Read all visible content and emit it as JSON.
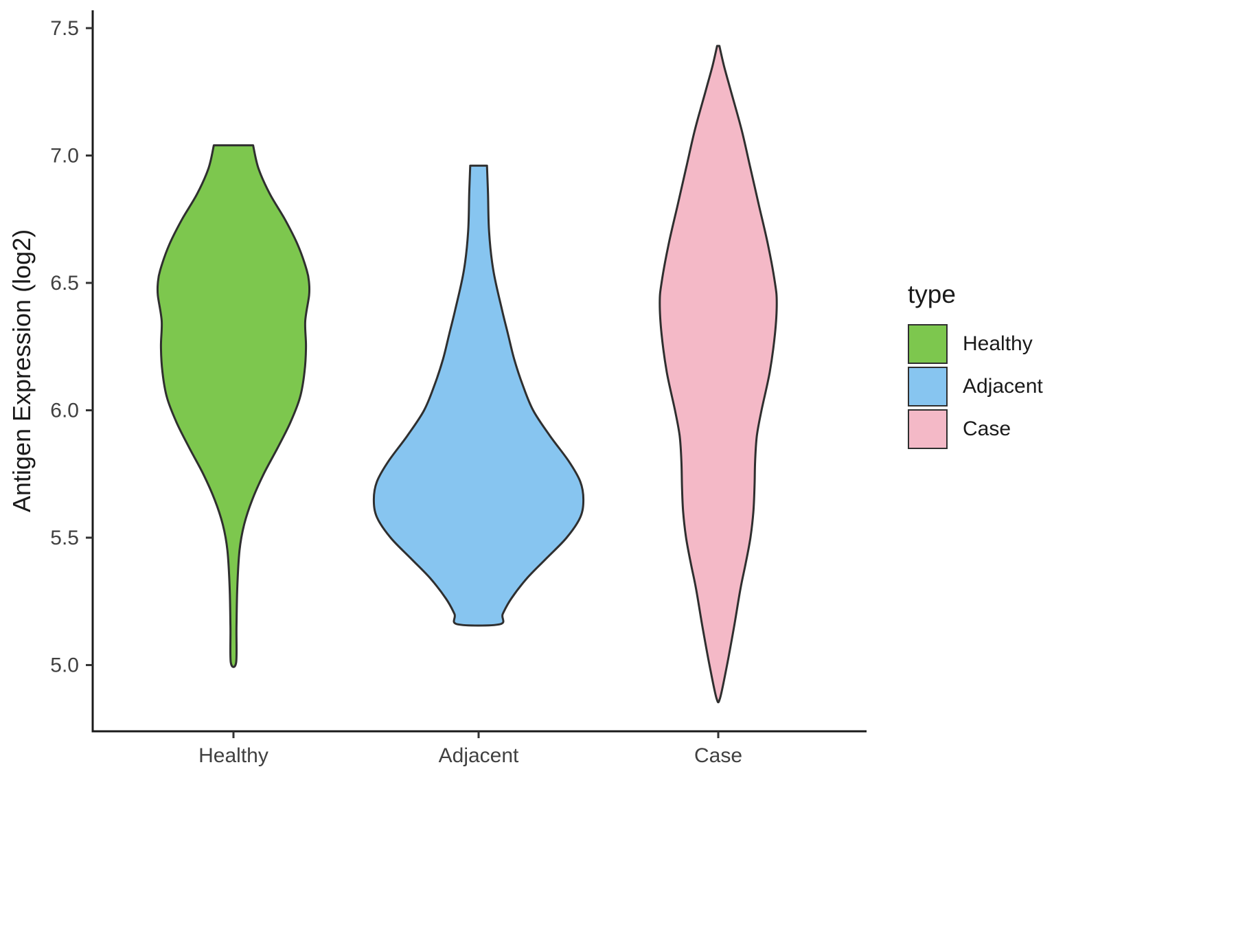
{
  "chart_data": {
    "type": "violin",
    "title": "",
    "xlabel": "",
    "ylabel": "Antigen Expression (log2)",
    "categories": [
      "Healthy",
      "Adjacent",
      "Case"
    ],
    "y_ticks": [
      "5.0",
      "5.5",
      "6.0",
      "6.5",
      "7.0",
      "7.5"
    ],
    "y_tick_values": [
      5.0,
      5.5,
      6.0,
      6.5,
      7.0,
      7.5
    ],
    "ylim": [
      4.74,
      7.57
    ],
    "grid": false,
    "legend_position": "right",
    "outline_color": "#2f2f2f",
    "axis_color": "#1a1a1a",
    "tick_label_color": "#404040",
    "series": [
      {
        "name": "Healthy",
        "color": "#7dc74e",
        "y_min": 5.01,
        "y_max": 7.04,
        "max_half_width": 0.31,
        "profile": [
          [
            7.04,
            0.26
          ],
          [
            6.95,
            0.33
          ],
          [
            6.85,
            0.48
          ],
          [
            6.75,
            0.68
          ],
          [
            6.65,
            0.85
          ],
          [
            6.55,
            0.97
          ],
          [
            6.5,
            1.0
          ],
          [
            6.45,
            1.0
          ],
          [
            6.35,
            0.95
          ],
          [
            6.25,
            0.96
          ],
          [
            6.15,
            0.94
          ],
          [
            6.05,
            0.88
          ],
          [
            5.95,
            0.75
          ],
          [
            5.85,
            0.58
          ],
          [
            5.75,
            0.4
          ],
          [
            5.65,
            0.25
          ],
          [
            5.55,
            0.14
          ],
          [
            5.45,
            0.08
          ],
          [
            5.3,
            0.05
          ],
          [
            5.15,
            0.04
          ],
          [
            5.01,
            0.035
          ]
        ]
      },
      {
        "name": "Adjacent",
        "color": "#87c5f0",
        "y_min": 5.16,
        "y_max": 6.96,
        "max_half_width": 0.43,
        "profile": [
          [
            6.96,
            0.08
          ],
          [
            6.85,
            0.09
          ],
          [
            6.7,
            0.1
          ],
          [
            6.55,
            0.14
          ],
          [
            6.4,
            0.22
          ],
          [
            6.3,
            0.28
          ],
          [
            6.2,
            0.34
          ],
          [
            6.1,
            0.42
          ],
          [
            6.0,
            0.52
          ],
          [
            5.9,
            0.68
          ],
          [
            5.8,
            0.86
          ],
          [
            5.72,
            0.97
          ],
          [
            5.65,
            1.0
          ],
          [
            5.58,
            0.97
          ],
          [
            5.5,
            0.84
          ],
          [
            5.42,
            0.65
          ],
          [
            5.34,
            0.46
          ],
          [
            5.26,
            0.31
          ],
          [
            5.2,
            0.23
          ],
          [
            5.16,
            0.2
          ]
        ]
      },
      {
        "name": "Case",
        "color": "#f4b9c7",
        "y_min": 4.87,
        "y_max": 7.43,
        "max_half_width": 0.24,
        "profile": [
          [
            7.43,
            0.02
          ],
          [
            7.35,
            0.1
          ],
          [
            7.25,
            0.22
          ],
          [
            7.1,
            0.4
          ],
          [
            6.95,
            0.55
          ],
          [
            6.8,
            0.7
          ],
          [
            6.65,
            0.85
          ],
          [
            6.5,
            0.97
          ],
          [
            6.42,
            1.0
          ],
          [
            6.3,
            0.97
          ],
          [
            6.15,
            0.88
          ],
          [
            6.0,
            0.74
          ],
          [
            5.9,
            0.66
          ],
          [
            5.8,
            0.63
          ],
          [
            5.7,
            0.62
          ],
          [
            5.6,
            0.6
          ],
          [
            5.5,
            0.55
          ],
          [
            5.4,
            0.47
          ],
          [
            5.3,
            0.38
          ],
          [
            5.15,
            0.27
          ],
          [
            5.0,
            0.15
          ],
          [
            4.87,
            0.03
          ]
        ]
      }
    ]
  },
  "legend": {
    "title": "type",
    "items": [
      {
        "label": "Healthy",
        "color": "#7dc74e"
      },
      {
        "label": "Adjacent",
        "color": "#87c5f0"
      },
      {
        "label": "Case",
        "color": "#f4b9c7"
      }
    ]
  }
}
